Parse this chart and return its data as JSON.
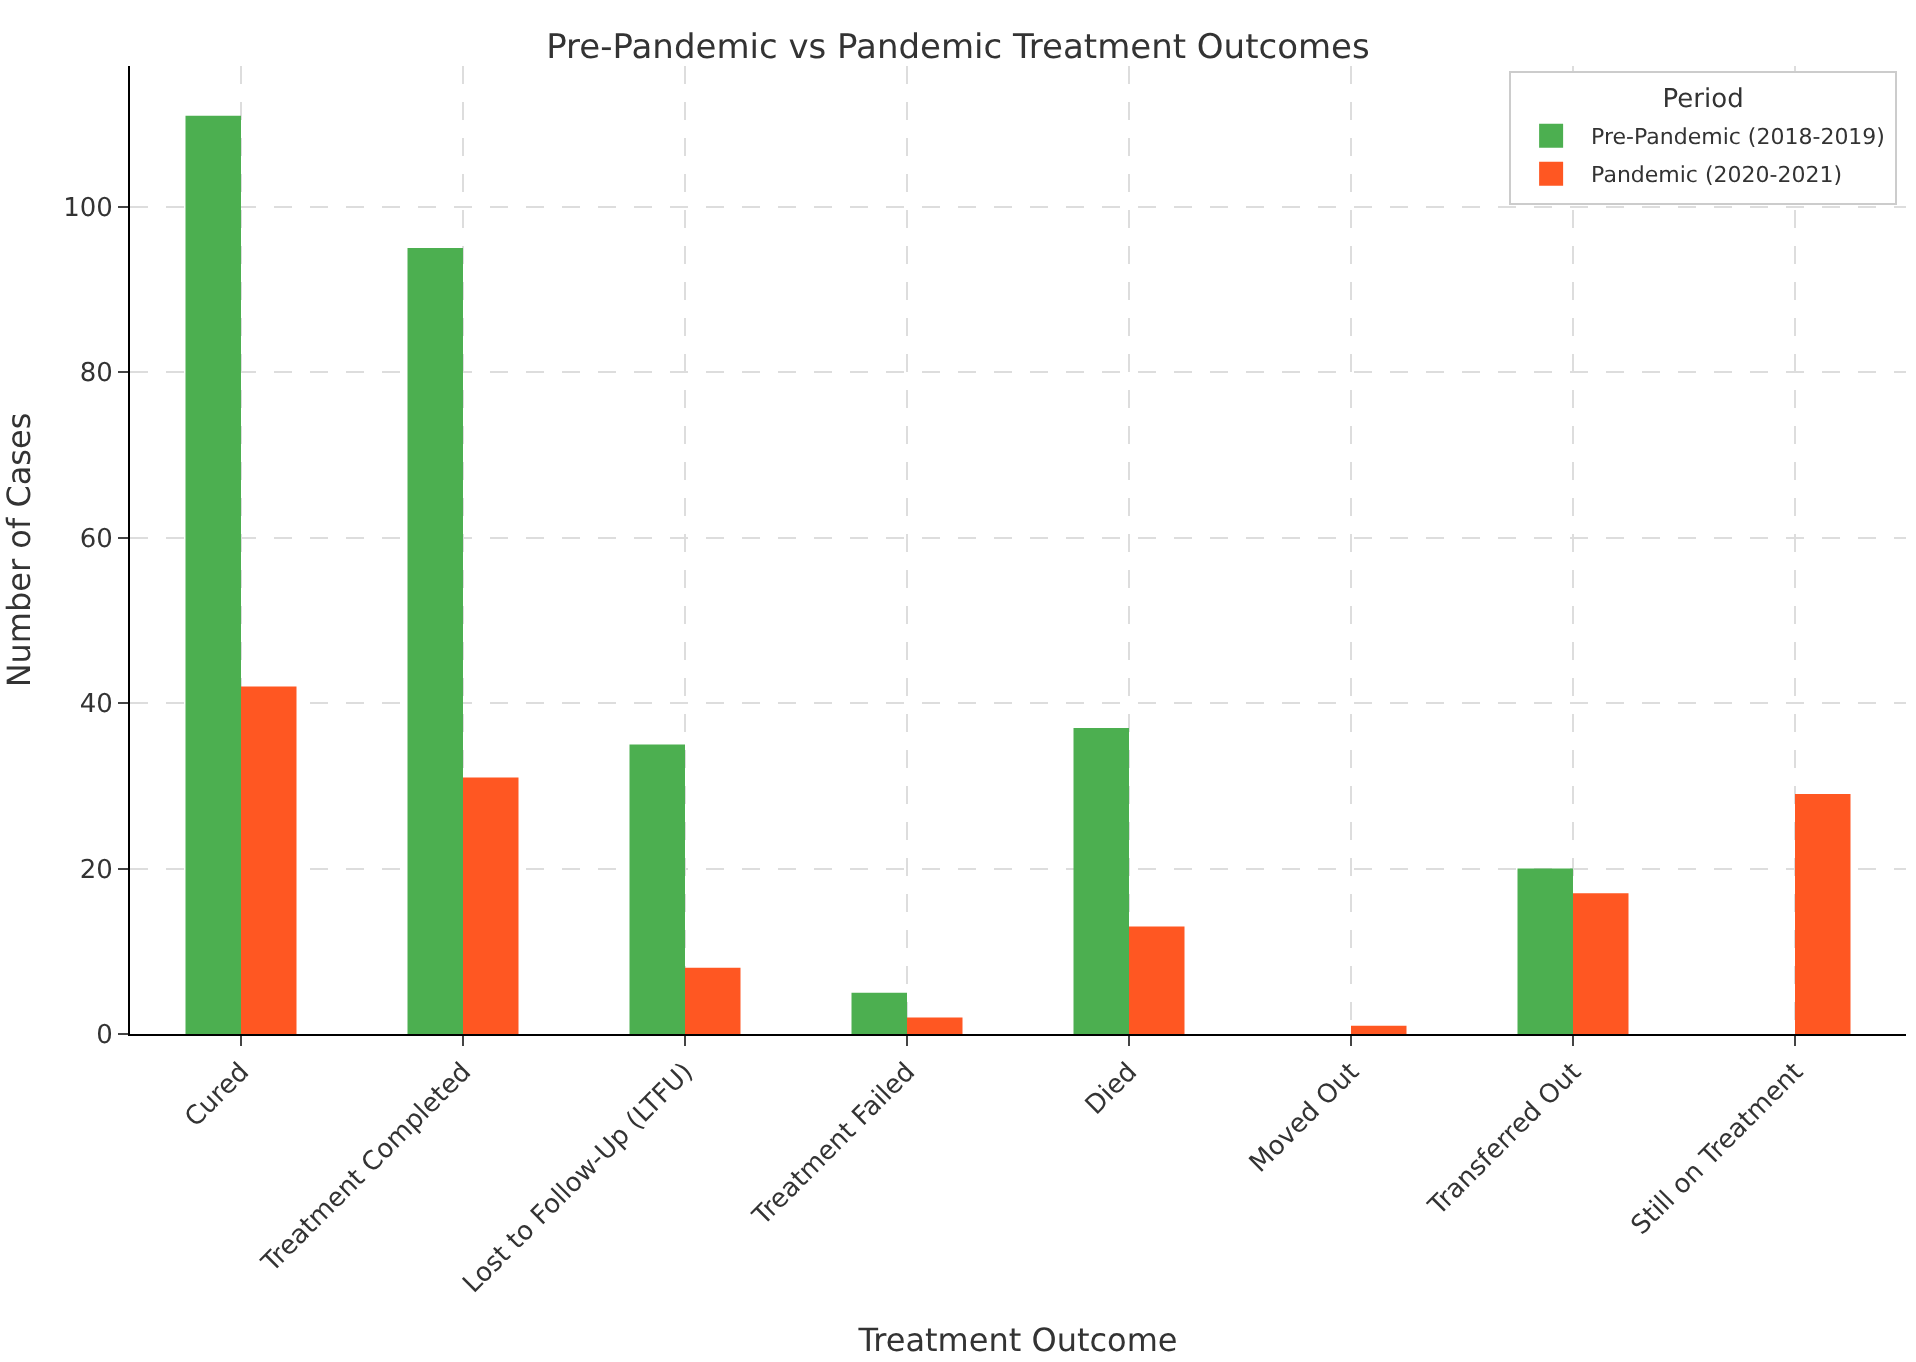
{
  "chart_data": {
    "type": "bar",
    "title": "Pre-Pandemic vs Pandemic Treatment Outcomes",
    "xlabel": "Treatment Outcome",
    "ylabel": "Number of Cases",
    "legend_title": "Period",
    "categories": [
      "Cured",
      "Treatment Completed",
      "Lost to Follow-Up (LTFU)",
      "Treatment Failed",
      "Died",
      "Moved Out",
      "Transferred Out",
      "Still on Treatment"
    ],
    "series": [
      {
        "name": "Pre-Pandemic (2018-2019)",
        "color": "#4caf50",
        "values": [
          111,
          95,
          35,
          5,
          37,
          0,
          20,
          0
        ]
      },
      {
        "name": "Pandemic (2020-2021)",
        "color": "#ff5722",
        "values": [
          42,
          31,
          8,
          2,
          13,
          1,
          17,
          29
        ]
      }
    ],
    "ylim": [
      0,
      117
    ],
    "yticks": [
      0,
      20,
      40,
      60,
      80,
      100
    ],
    "grid": true,
    "legend": "top right"
  }
}
